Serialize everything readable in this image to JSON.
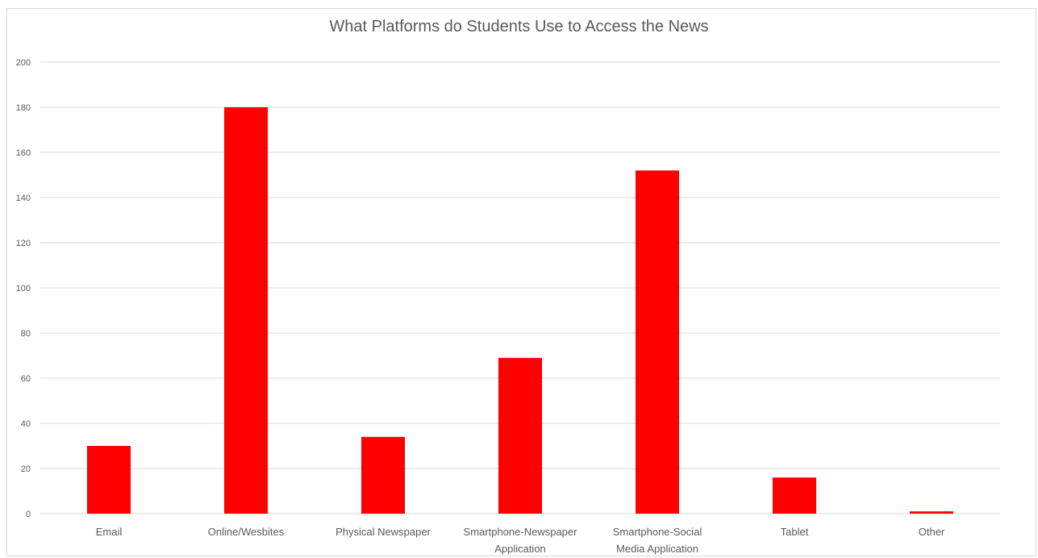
{
  "chart_data": {
    "type": "bar",
    "title": "What Platforms do Students  Use to Access the News",
    "xlabel": "",
    "ylabel": "",
    "categories": [
      [
        "Email"
      ],
      [
        "Online/Wesbites"
      ],
      [
        "Physical Newspaper"
      ],
      [
        "Smartphone-Newspaper",
        "Application"
      ],
      [
        "Smartphone-Social",
        "Media Application"
      ],
      [
        "Tablet"
      ],
      [
        "Other"
      ]
    ],
    "values": [
      30,
      180,
      34,
      69,
      152,
      16,
      1
    ],
    "ylim": [
      0,
      200
    ],
    "yticks": [
      0,
      20,
      40,
      60,
      80,
      100,
      120,
      140,
      160,
      180,
      200
    ],
    "grid": true,
    "legend": "none",
    "bar_color": "#ff0000",
    "grid_color": "#d9d9d9"
  }
}
